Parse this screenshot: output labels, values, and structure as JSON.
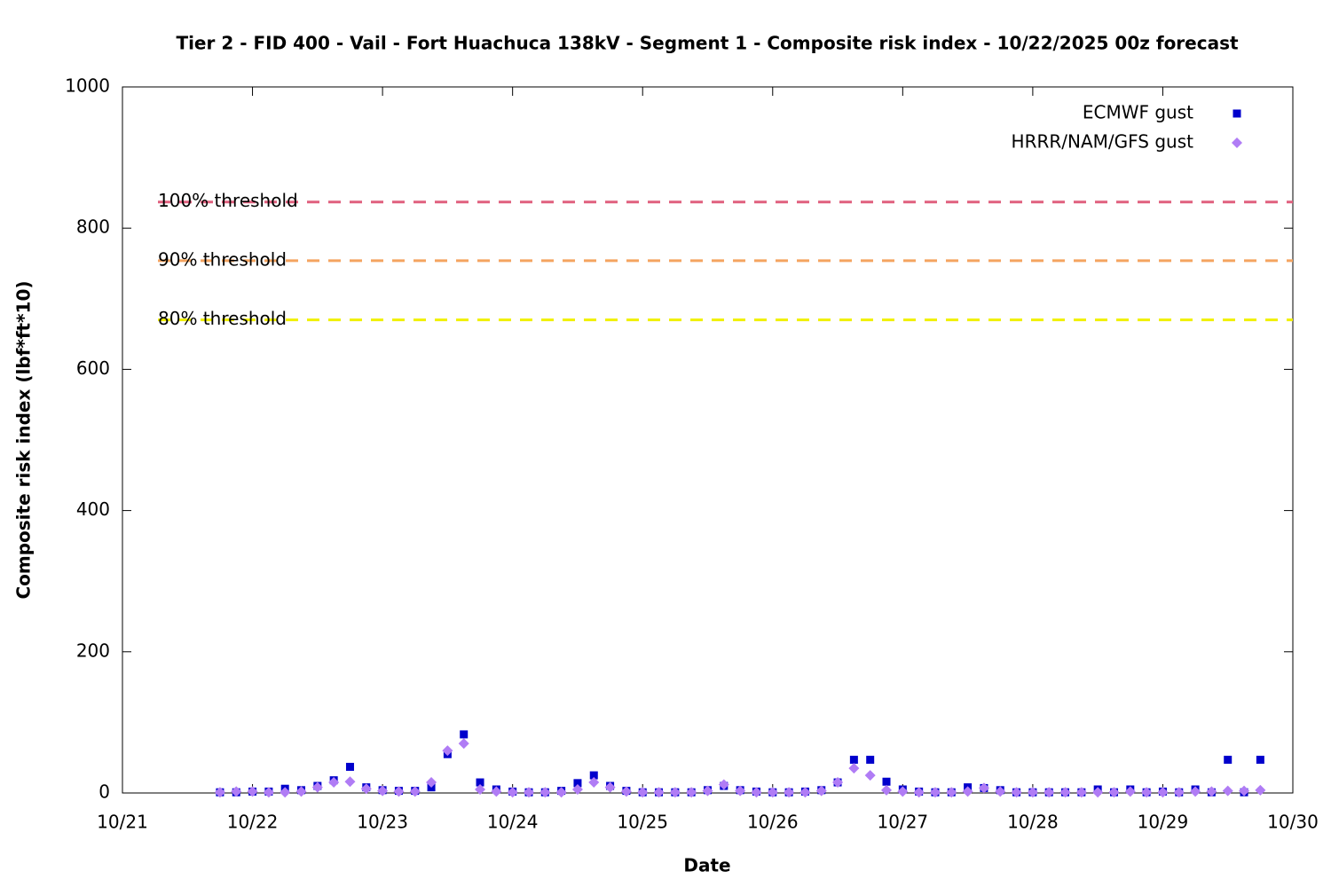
{
  "chart_data": {
    "type": "scatter",
    "title": "Tier 2 - FID 400 - Vail - Fort Huachuca 138kV - Segment 1 - Composite risk index - 10/22/2025 00z forecast",
    "xlabel": "Date",
    "ylabel": "Composite risk index (lbf*ft*10)",
    "x": [
      21.75,
      21.875,
      22.0,
      22.125,
      22.25,
      22.375,
      22.5,
      22.625,
      22.75,
      22.875,
      23.0,
      23.125,
      23.25,
      23.375,
      23.5,
      23.625,
      23.75,
      23.875,
      24.0,
      24.125,
      24.25,
      24.375,
      24.5,
      24.625,
      24.75,
      24.875,
      25.0,
      25.125,
      25.25,
      25.375,
      25.5,
      25.625,
      25.75,
      25.875,
      26.0,
      26.125,
      26.25,
      26.375,
      26.5,
      26.625,
      26.75,
      26.875,
      27.0,
      27.125,
      27.25,
      27.375,
      27.5,
      27.625,
      27.75,
      27.875,
      28.0,
      28.125,
      28.25,
      28.375,
      28.5,
      28.625,
      28.75,
      28.875,
      29.0,
      29.125,
      29.25,
      29.375,
      29.5,
      29.625,
      29.75
    ],
    "series": [
      {
        "name": "ECMWF gust",
        "color": "#0000cc",
        "marker": "square",
        "values": [
          1,
          1,
          2,
          2,
          6,
          4,
          10,
          18,
          37,
          8,
          4,
          3,
          3,
          8,
          55,
          83,
          15,
          5,
          2,
          1,
          1,
          3,
          14,
          25,
          10,
          3,
          1,
          1,
          1,
          1,
          4,
          10,
          4,
          2,
          1,
          1,
          2,
          4,
          15,
          47,
          47,
          16,
          5,
          2,
          1,
          1,
          8,
          7,
          4,
          1,
          1,
          1,
          1,
          1,
          5,
          1,
          5,
          1,
          2,
          1,
          5,
          1,
          47,
          1,
          47
        ]
      },
      {
        "name": "HRRR/NAM/GFS gust",
        "color": "#b07cf5",
        "marker": "diamond",
        "values": [
          1,
          2,
          2,
          1,
          1,
          2,
          8,
          15,
          16,
          6,
          3,
          2,
          2,
          15,
          60,
          70,
          5,
          2,
          1,
          1,
          1,
          1,
          5,
          15,
          8,
          2,
          1,
          1,
          1,
          1,
          3,
          12,
          3,
          1,
          1,
          1,
          1,
          3,
          15,
          35,
          25,
          4,
          2,
          1,
          1,
          1,
          2,
          7,
          2,
          1,
          1,
          1,
          1,
          1,
          1,
          1,
          2,
          1,
          1,
          1,
          2,
          2,
          3,
          3,
          4
        ]
      }
    ],
    "thresholds": [
      {
        "label": "100% threshold",
        "value": 837,
        "color": "#e0607e"
      },
      {
        "label": "90% threshold",
        "value": 754,
        "color": "#f4a460"
      },
      {
        "label": "80% threshold",
        "value": 670,
        "color": "#f0f000"
      }
    ],
    "xlim": [
      21,
      30
    ],
    "xticks": [
      {
        "value": 21,
        "label": "10/21"
      },
      {
        "value": 22,
        "label": "10/22"
      },
      {
        "value": 23,
        "label": "10/23"
      },
      {
        "value": 24,
        "label": "10/24"
      },
      {
        "value": 25,
        "label": "10/25"
      },
      {
        "value": 26,
        "label": "10/26"
      },
      {
        "value": 27,
        "label": "10/27"
      },
      {
        "value": 28,
        "label": "10/28"
      },
      {
        "value": 29,
        "label": "10/29"
      },
      {
        "value": 30,
        "label": "10/30"
      }
    ],
    "ylim": [
      0,
      1000
    ],
    "yticks": [
      0,
      200,
      400,
      600,
      800,
      1000
    ],
    "legend": "top-right"
  }
}
